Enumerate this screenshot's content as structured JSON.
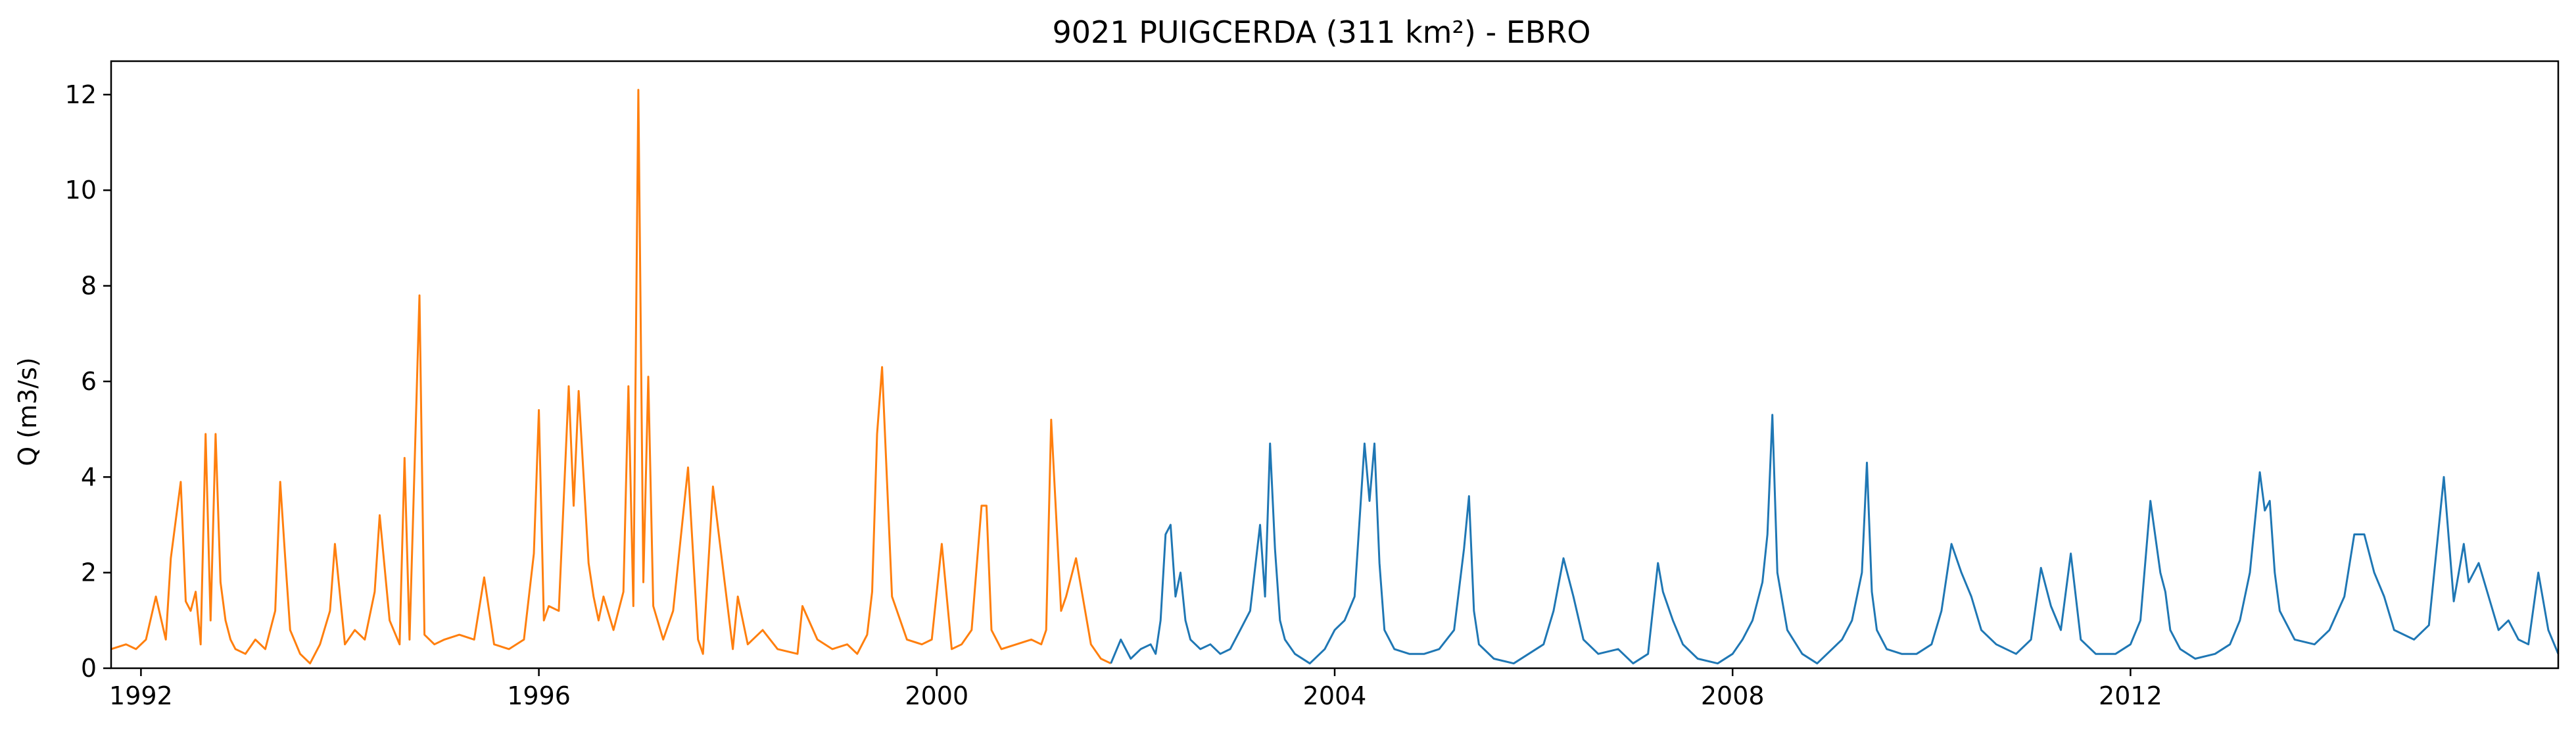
{
  "chart_data": {
    "type": "line",
    "title": "9021 PUIGCERDA (311 km²) - EBRO",
    "xlabel": "",
    "ylabel": "Q (m3/s)",
    "x_type": "year",
    "xlim": [
      1991.7,
      2016.3
    ],
    "ylim": [
      0,
      12.7
    ],
    "grid": false,
    "x_ticks": [
      {
        "value": 1992,
        "label": "1992"
      },
      {
        "value": 1996,
        "label": "1996"
      },
      {
        "value": 2000,
        "label": "2000"
      },
      {
        "value": 2004,
        "label": "2004"
      },
      {
        "value": 2008,
        "label": "2008"
      },
      {
        "value": 2012,
        "label": "2012"
      }
    ],
    "y_ticks": [
      {
        "value": 0,
        "label": "0"
      },
      {
        "value": 2,
        "label": "2"
      },
      {
        "value": 4,
        "label": "4"
      },
      {
        "value": 6,
        "label": "6"
      },
      {
        "value": 8,
        "label": "8"
      },
      {
        "value": 10,
        "label": "10"
      },
      {
        "value": 12,
        "label": "12"
      }
    ],
    "series": [
      {
        "color": "#ff7f0e",
        "x": [
          1991.7,
          1991.85,
          1991.95,
          1992.05,
          1992.15,
          1992.25,
          1992.3,
          1992.4,
          1992.45,
          1992.5,
          1992.55,
          1992.6,
          1992.65,
          1992.7,
          1992.75,
          1992.8,
          1992.85,
          1992.9,
          1992.95,
          1993.05,
          1993.15,
          1993.25,
          1993.35,
          1993.4,
          1993.45,
          1993.5,
          1993.6,
          1993.7,
          1993.8,
          1993.9,
          1993.95,
          1994.05,
          1994.15,
          1994.25,
          1994.35,
          1994.4,
          1994.5,
          1994.6,
          1994.65,
          1994.7,
          1994.8,
          1994.85,
          1994.9,
          1994.95,
          1995.05,
          1995.2,
          1995.35,
          1995.45,
          1995.55,
          1995.7,
          1995.85,
          1995.95,
          1996.0,
          1996.05,
          1996.1,
          1996.2,
          1996.3,
          1996.35,
          1996.4,
          1996.45,
          1996.5,
          1996.55,
          1996.6,
          1996.65,
          1996.75,
          1996.85,
          1996.9,
          1996.95,
          1997.0,
          1997.05,
          1997.1,
          1997.15,
          1997.25,
          1997.35,
          1997.5,
          1997.6,
          1997.65,
          1997.75,
          1997.95,
          1998.0,
          1998.1,
          1998.25,
          1998.4,
          1998.6,
          1998.65,
          1998.8,
          1998.95,
          1999.1,
          1999.2,
          1999.3,
          1999.35,
          1999.4,
          1999.45,
          1999.55,
          1999.7,
          1999.85,
          1999.95,
          2000.05,
          2000.15,
          2000.25,
          2000.35,
          2000.4,
          2000.45,
          2000.5,
          2000.55,
          2000.65,
          2000.8,
          2000.95,
          2001.05,
          2001.1,
          2001.15,
          2001.25,
          2001.3,
          2001.4,
          2001.55,
          2001.65,
          2001.75
        ],
        "y": [
          0.4,
          0.5,
          0.4,
          0.6,
          1.5,
          0.6,
          2.3,
          3.9,
          1.4,
          1.2,
          1.6,
          0.5,
          4.9,
          1.0,
          4.9,
          1.8,
          1.0,
          0.6,
          0.4,
          0.3,
          0.6,
          0.4,
          1.2,
          3.9,
          2.3,
          0.8,
          0.3,
          0.1,
          0.5,
          1.2,
          2.6,
          0.5,
          0.8,
          0.6,
          1.6,
          3.2,
          1.0,
          0.5,
          4.4,
          0.6,
          7.8,
          0.7,
          0.6,
          0.5,
          0.6,
          0.7,
          0.6,
          1.9,
          0.5,
          0.4,
          0.6,
          2.4,
          5.4,
          1.0,
          1.3,
          1.2,
          5.9,
          3.4,
          5.8,
          4.0,
          2.2,
          1.5,
          1.0,
          1.5,
          0.8,
          1.6,
          5.9,
          1.3,
          12.1,
          1.8,
          6.1,
          1.3,
          0.6,
          1.2,
          4.2,
          0.6,
          0.3,
          3.8,
          0.4,
          1.5,
          0.5,
          0.8,
          0.4,
          0.3,
          1.3,
          0.6,
          0.4,
          0.5,
          0.3,
          0.7,
          1.6,
          4.9,
          6.3,
          1.5,
          0.6,
          0.5,
          0.6,
          2.6,
          0.4,
          0.5,
          0.8,
          2.1,
          3.4,
          3.4,
          0.8,
          0.4,
          0.5,
          0.6,
          0.5,
          0.8,
          5.2,
          1.2,
          1.5,
          2.3,
          0.5,
          0.2,
          0.1
        ]
      },
      {
        "color": "#1f77b4",
        "x": [
          2001.75,
          2001.85,
          2001.95,
          2002.05,
          2002.15,
          2002.2,
          2002.25,
          2002.3,
          2002.35,
          2002.4,
          2002.45,
          2002.5,
          2002.55,
          2002.65,
          2002.75,
          2002.85,
          2002.95,
          2003.05,
          2003.15,
          2003.25,
          2003.3,
          2003.35,
          2003.4,
          2003.45,
          2003.5,
          2003.6,
          2003.75,
          2003.9,
          2004.0,
          2004.1,
          2004.2,
          2004.3,
          2004.35,
          2004.4,
          2004.45,
          2004.5,
          2004.6,
          2004.75,
          2004.9,
          2005.05,
          2005.2,
          2005.3,
          2005.35,
          2005.4,
          2005.45,
          2005.6,
          2005.8,
          2005.95,
          2006.1,
          2006.2,
          2006.3,
          2006.4,
          2006.5,
          2006.65,
          2006.85,
          2007.0,
          2007.15,
          2007.25,
          2007.3,
          2007.4,
          2007.5,
          2007.65,
          2007.85,
          2008.0,
          2008.1,
          2008.2,
          2008.3,
          2008.35,
          2008.4,
          2008.45,
          2008.55,
          2008.7,
          2008.85,
          2009.0,
          2009.1,
          2009.2,
          2009.3,
          2009.35,
          2009.4,
          2009.45,
          2009.55,
          2009.7,
          2009.85,
          2010.0,
          2010.1,
          2010.2,
          2010.3,
          2010.4,
          2010.5,
          2010.65,
          2010.85,
          2011.0,
          2011.1,
          2011.2,
          2011.3,
          2011.4,
          2011.5,
          2011.65,
          2011.85,
          2012.0,
          2012.1,
          2012.2,
          2012.3,
          2012.35,
          2012.4,
          2012.5,
          2012.65,
          2012.85,
          2013.0,
          2013.1,
          2013.2,
          2013.3,
          2013.35,
          2013.4,
          2013.45,
          2013.5,
          2013.65,
          2013.85,
          2014.0,
          2014.15,
          2014.25,
          2014.35,
          2014.45,
          2014.55,
          2014.65,
          2014.85,
          2015.0,
          2015.15,
          2015.25,
          2015.35,
          2015.4,
          2015.5,
          2015.6,
          2015.7,
          2015.8,
          2015.9,
          2016.0,
          2016.1,
          2016.2,
          2016.3
        ],
        "y": [
          0.1,
          0.6,
          0.2,
          0.4,
          0.5,
          0.3,
          1.0,
          2.8,
          3.0,
          1.5,
          2.0,
          1.0,
          0.6,
          0.4,
          0.5,
          0.3,
          0.4,
          0.8,
          1.2,
          3.0,
          1.5,
          4.7,
          2.5,
          1.0,
          0.6,
          0.3,
          0.1,
          0.4,
          0.8,
          1.0,
          1.5,
          4.7,
          3.5,
          4.7,
          2.2,
          0.8,
          0.4,
          0.3,
          0.3,
          0.4,
          0.8,
          2.5,
          3.6,
          1.2,
          0.5,
          0.2,
          0.1,
          0.3,
          0.5,
          1.2,
          2.3,
          1.5,
          0.6,
          0.3,
          0.4,
          0.1,
          0.3,
          2.2,
          1.6,
          1.0,
          0.5,
          0.2,
          0.1,
          0.3,
          0.6,
          1.0,
          1.8,
          2.8,
          5.3,
          2.0,
          0.8,
          0.3,
          0.1,
          0.4,
          0.6,
          1.0,
          2.0,
          4.3,
          1.6,
          0.8,
          0.4,
          0.3,
          0.3,
          0.5,
          1.2,
          2.6,
          2.0,
          1.5,
          0.8,
          0.5,
          0.3,
          0.6,
          2.1,
          1.3,
          0.8,
          2.4,
          0.6,
          0.3,
          0.3,
          0.5,
          1.0,
          3.5,
          2.0,
          1.6,
          0.8,
          0.4,
          0.2,
          0.3,
          0.5,
          1.0,
          2.0,
          4.1,
          3.3,
          3.5,
          2.0,
          1.2,
          0.6,
          0.5,
          0.8,
          1.5,
          2.8,
          2.8,
          2.0,
          1.5,
          0.8,
          0.6,
          0.9,
          4.0,
          1.4,
          2.6,
          1.8,
          2.2,
          1.5,
          0.8,
          1.0,
          0.6,
          0.5,
          2.0,
          0.8,
          0.3
        ]
      }
    ]
  }
}
